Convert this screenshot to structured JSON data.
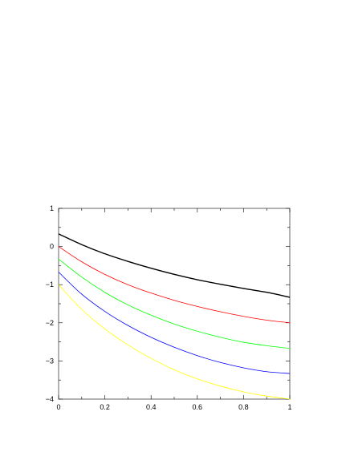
{
  "chart_data": {
    "type": "line",
    "title": "",
    "xlabel": "",
    "ylabel": "",
    "xlim": [
      0,
      1
    ],
    "ylim": [
      -4,
      1
    ],
    "grid": false,
    "legend": "none",
    "x_ticks": [
      "0",
      "0.2",
      "0.4",
      "0.6",
      "0.8",
      "1"
    ],
    "y_ticks": [
      "1",
      "0",
      "−1",
      "−2",
      "−3",
      "−4"
    ],
    "series": [
      {
        "color": "#000000",
        "x": [
          0,
          0.1,
          0.2,
          0.3,
          0.4,
          0.5,
          0.6,
          0.7,
          0.8,
          0.9,
          1.0
        ],
        "y": [
          0.33,
          0.05,
          -0.19,
          -0.39,
          -0.57,
          -0.73,
          -0.87,
          -0.99,
          -1.1,
          -1.2,
          -1.33
        ]
      },
      {
        "color": "#ff0000",
        "x": [
          0,
          0.1,
          0.2,
          0.3,
          0.4,
          0.5,
          0.6,
          0.7,
          0.8,
          0.9,
          1.0
        ],
        "y": [
          0.0,
          -0.4,
          -0.73,
          -1.0,
          -1.22,
          -1.41,
          -1.57,
          -1.71,
          -1.83,
          -1.93,
          -2.0
        ]
      },
      {
        "color": "#00ff00",
        "x": [
          0,
          0.1,
          0.2,
          0.3,
          0.4,
          0.5,
          0.6,
          0.7,
          0.8,
          0.9,
          1.0
        ],
        "y": [
          -0.33,
          -0.8,
          -1.2,
          -1.53,
          -1.8,
          -2.03,
          -2.22,
          -2.38,
          -2.51,
          -2.6,
          -2.67
        ]
      },
      {
        "color": "#0000ff",
        "x": [
          0,
          0.1,
          0.2,
          0.3,
          0.4,
          0.5,
          0.6,
          0.7,
          0.8,
          0.9,
          1.0
        ],
        "y": [
          -0.67,
          -1.25,
          -1.7,
          -2.07,
          -2.38,
          -2.64,
          -2.86,
          -3.04,
          -3.18,
          -3.28,
          -3.33
        ]
      },
      {
        "color": "#ffff00",
        "x": [
          0,
          0.1,
          0.2,
          0.3,
          0.4,
          0.5,
          0.6,
          0.7,
          0.8,
          0.9,
          1.0
        ],
        "y": [
          -1.0,
          -1.65,
          -2.16,
          -2.58,
          -2.93,
          -3.23,
          -3.47,
          -3.66,
          -3.81,
          -3.92,
          -4.0
        ]
      }
    ]
  }
}
